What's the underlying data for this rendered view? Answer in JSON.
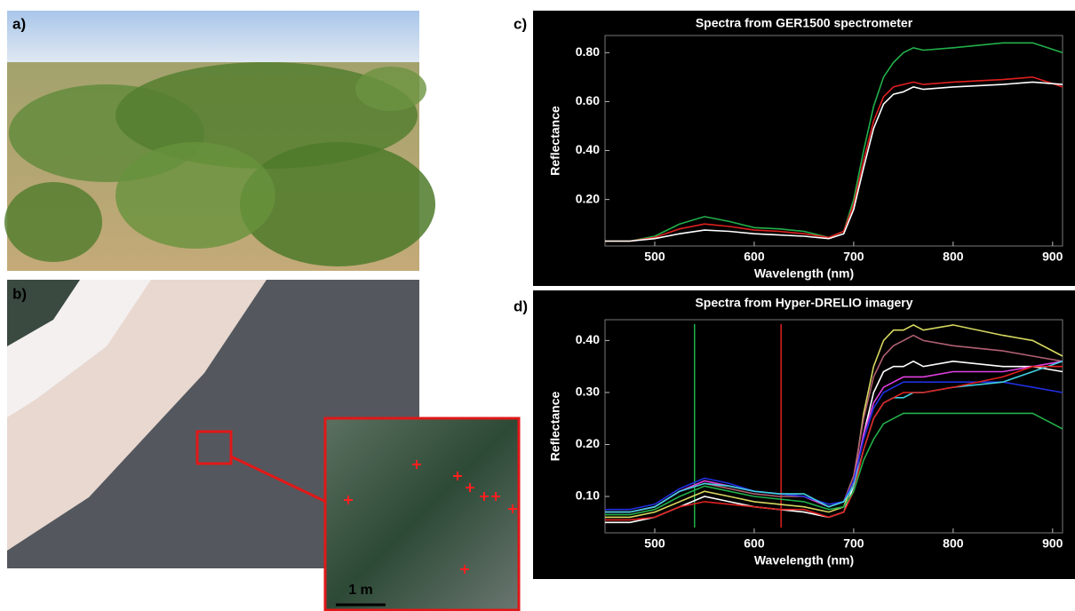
{
  "panel_labels": [
    "a)",
    "b)",
    "c)",
    "d)"
  ],
  "scale_label": "1 m",
  "chart_data": [
    {
      "type": "line",
      "title": "Spectra from GER1500 spectrometer",
      "xlabel": "Wavelength (nm)",
      "ylabel": "Reflectance",
      "x": [
        450,
        475,
        500,
        525,
        550,
        575,
        600,
        625,
        650,
        675,
        690,
        700,
        710,
        720,
        730,
        740,
        750,
        760,
        770,
        800,
        850,
        880,
        910
      ],
      "xlim": [
        450,
        910
      ],
      "xticks": [
        500,
        600,
        700,
        800,
        900
      ],
      "ylim": [
        0.01,
        0.87
      ],
      "yticks": [
        {
          "value": 0.2,
          "label": "0.20"
        },
        {
          "value": 0.4,
          "label": "0.40"
        },
        {
          "value": 0.6,
          "label": "0.60"
        },
        {
          "value": 0.8,
          "label": "0.80"
        }
      ],
      "series": [
        {
          "color": "#22b04a",
          "values": [
            0.03,
            0.03,
            0.05,
            0.1,
            0.13,
            0.11,
            0.085,
            0.08,
            0.07,
            0.045,
            0.07,
            0.2,
            0.4,
            0.58,
            0.7,
            0.76,
            0.8,
            0.82,
            0.81,
            0.82,
            0.84,
            0.84,
            0.8
          ]
        },
        {
          "color": "#e02020",
          "values": [
            0.03,
            0.03,
            0.045,
            0.08,
            0.1,
            0.09,
            0.075,
            0.07,
            0.06,
            0.045,
            0.07,
            0.18,
            0.36,
            0.52,
            0.62,
            0.66,
            0.67,
            0.68,
            0.67,
            0.68,
            0.69,
            0.7,
            0.66
          ]
        },
        {
          "color": "#ffffff",
          "values": [
            0.03,
            0.03,
            0.04,
            0.06,
            0.075,
            0.07,
            0.06,
            0.055,
            0.05,
            0.04,
            0.06,
            0.16,
            0.33,
            0.49,
            0.59,
            0.63,
            0.64,
            0.66,
            0.65,
            0.66,
            0.67,
            0.68,
            0.67
          ]
        }
      ]
    },
    {
      "type": "line",
      "title": "Spectra from Hyper-DRELIO imagery",
      "xlabel": "Wavelength (nm)",
      "ylabel": "Reflectance",
      "x": [
        450,
        475,
        500,
        525,
        550,
        575,
        600,
        625,
        650,
        675,
        690,
        700,
        710,
        720,
        730,
        740,
        750,
        760,
        770,
        800,
        850,
        880,
        910
      ],
      "xlim": [
        450,
        910
      ],
      "xticks": [
        500,
        600,
        700,
        800,
        900
      ],
      "ylim": [
        0.03,
        0.44
      ],
      "yticks": [
        {
          "value": 0.1,
          "label": "0.10"
        },
        {
          "value": 0.2,
          "label": "0.20"
        },
        {
          "value": 0.3,
          "label": "0.30"
        },
        {
          "value": 0.4,
          "label": "0.40"
        }
      ],
      "vlines": [
        {
          "value": 540,
          "color": "#22b04a"
        },
        {
          "value": 627,
          "color": "#e02020"
        }
      ],
      "series": [
        {
          "color": "#d8d860",
          "values": [
            0.06,
            0.06,
            0.07,
            0.09,
            0.11,
            0.1,
            0.09,
            0.085,
            0.08,
            0.07,
            0.08,
            0.13,
            0.26,
            0.35,
            0.4,
            0.42,
            0.42,
            0.43,
            0.42,
            0.43,
            0.41,
            0.4,
            0.37
          ]
        },
        {
          "color": "#b06070",
          "values": [
            0.07,
            0.07,
            0.08,
            0.11,
            0.125,
            0.115,
            0.105,
            0.1,
            0.1,
            0.08,
            0.09,
            0.14,
            0.25,
            0.33,
            0.37,
            0.39,
            0.4,
            0.41,
            0.4,
            0.39,
            0.38,
            0.37,
            0.36
          ]
        },
        {
          "color": "#ffffff",
          "values": [
            0.05,
            0.05,
            0.06,
            0.08,
            0.1,
            0.09,
            0.08,
            0.075,
            0.07,
            0.06,
            0.07,
            0.12,
            0.22,
            0.3,
            0.34,
            0.35,
            0.35,
            0.36,
            0.35,
            0.36,
            0.35,
            0.35,
            0.34
          ]
        },
        {
          "color": "#e040e0",
          "values": [
            0.07,
            0.07,
            0.08,
            0.11,
            0.13,
            0.12,
            0.11,
            0.105,
            0.1,
            0.08,
            0.09,
            0.13,
            0.22,
            0.28,
            0.31,
            0.32,
            0.33,
            0.33,
            0.33,
            0.34,
            0.34,
            0.35,
            0.36
          ]
        },
        {
          "color": "#2030e0",
          "values": [
            0.075,
            0.075,
            0.085,
            0.115,
            0.135,
            0.125,
            0.11,
            0.105,
            0.1,
            0.085,
            0.09,
            0.13,
            0.21,
            0.27,
            0.3,
            0.31,
            0.32,
            0.32,
            0.32,
            0.32,
            0.32,
            0.31,
            0.3
          ]
        },
        {
          "color": "#40d0e0",
          "values": [
            0.07,
            0.07,
            0.08,
            0.11,
            0.125,
            0.12,
            0.11,
            0.105,
            0.105,
            0.08,
            0.09,
            0.12,
            0.19,
            0.25,
            0.28,
            0.29,
            0.29,
            0.3,
            0.3,
            0.31,
            0.32,
            0.34,
            0.36
          ]
        },
        {
          "color": "#e02020",
          "values": [
            0.055,
            0.055,
            0.06,
            0.08,
            0.09,
            0.085,
            0.08,
            0.075,
            0.075,
            0.06,
            0.07,
            0.11,
            0.19,
            0.25,
            0.28,
            0.29,
            0.3,
            0.3,
            0.3,
            0.31,
            0.33,
            0.35,
            0.35
          ]
        },
        {
          "color": "#22b04a",
          "values": [
            0.065,
            0.065,
            0.075,
            0.1,
            0.12,
            0.11,
            0.1,
            0.095,
            0.09,
            0.075,
            0.08,
            0.11,
            0.17,
            0.21,
            0.24,
            0.25,
            0.26,
            0.26,
            0.26,
            0.26,
            0.26,
            0.26,
            0.23
          ]
        }
      ]
    }
  ]
}
